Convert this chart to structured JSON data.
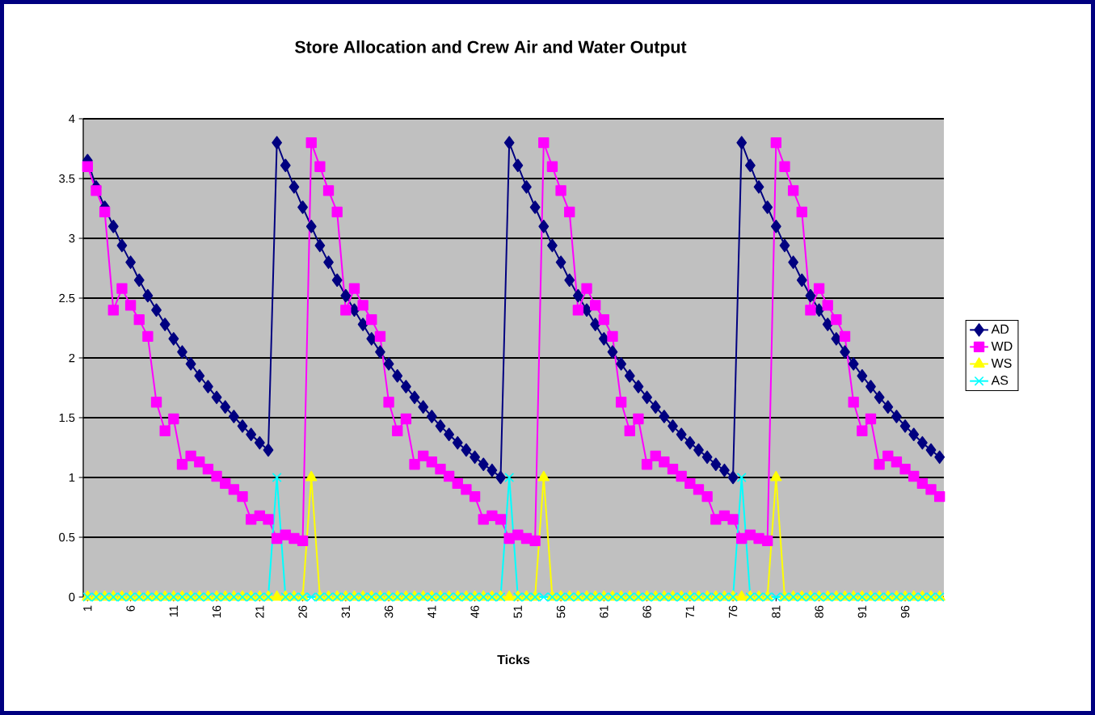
{
  "chart_data": {
    "type": "line",
    "title": "Store Allocation and Crew Air and Water Output",
    "xlabel": "Ticks",
    "categories": [
      "1",
      null,
      null,
      null,
      null,
      "6",
      null,
      null,
      null,
      null,
      "11",
      null,
      null,
      null,
      null,
      "16",
      null,
      null,
      null,
      null,
      "21",
      null,
      null,
      null,
      null,
      "26",
      null,
      null,
      null,
      null,
      "31",
      null,
      null,
      null,
      null,
      "36",
      null,
      null,
      null,
      null,
      "41",
      null,
      null,
      null,
      null,
      "46",
      null,
      null,
      null,
      null,
      "51",
      null,
      null,
      null,
      null,
      "56",
      null,
      null,
      null,
      null,
      "61",
      null,
      null,
      null,
      null,
      "66",
      null,
      null,
      null,
      null,
      "71",
      null,
      null,
      null,
      null,
      "76",
      null,
      null,
      null,
      null,
      "81",
      null,
      null,
      null,
      null,
      "86",
      null,
      null,
      null,
      null,
      "91",
      null,
      null,
      null,
      null,
      "96",
      null,
      null,
      null,
      null
    ],
    "ylim": [
      0,
      4
    ],
    "yticks": [
      0,
      0.5,
      1,
      1.5,
      2,
      2.5,
      3,
      3.5,
      4
    ],
    "grid": "y",
    "legend": "right",
    "line_style": "solid",
    "series": [
      {
        "name": "AD",
        "color": "#000080",
        "marker": "diamond",
        "values": [
          3.65,
          3.43,
          3.26,
          3.1,
          2.94,
          2.8,
          2.65,
          2.52,
          2.4,
          2.28,
          2.16,
          2.05,
          1.95,
          1.85,
          1.76,
          1.67,
          1.59,
          1.51,
          1.43,
          1.36,
          1.29,
          1.23,
          3.8,
          3.61,
          3.43,
          3.26,
          3.1,
          2.94,
          2.8,
          2.65,
          2.52,
          2.4,
          2.28,
          2.16,
          2.05,
          1.95,
          1.85,
          1.76,
          1.67,
          1.59,
          1.51,
          1.43,
          1.36,
          1.29,
          1.23,
          1.17,
          1.11,
          1.06,
          1.0,
          3.8,
          3.61,
          3.43,
          3.26,
          3.1,
          2.94,
          2.8,
          2.65,
          2.52,
          2.4,
          2.28,
          2.16,
          2.05,
          1.95,
          1.85,
          1.76,
          1.67,
          1.59,
          1.51,
          1.43,
          1.36,
          1.29,
          1.23,
          1.17,
          1.11,
          1.06,
          1.0,
          3.8,
          3.61,
          3.43,
          3.26,
          3.1,
          2.94,
          2.8,
          2.65,
          2.52,
          2.4,
          2.28,
          2.16,
          2.05,
          1.95,
          1.85,
          1.76,
          1.67,
          1.59,
          1.51,
          1.43,
          1.36,
          1.29,
          1.23,
          1.17
        ]
      },
      {
        "name": "WD",
        "color": "#ff00ff",
        "marker": "square",
        "values": [
          3.6,
          3.4,
          3.22,
          2.4,
          2.58,
          2.44,
          2.32,
          2.18,
          1.63,
          1.39,
          1.49,
          1.11,
          1.18,
          1.13,
          1.07,
          1.01,
          0.95,
          0.9,
          0.84,
          0.65,
          0.68,
          0.65,
          0.49,
          0.52,
          0.49,
          0.47,
          3.8,
          3.6,
          3.4,
          3.22,
          2.4,
          2.58,
          2.44,
          2.32,
          2.18,
          1.63,
          1.39,
          1.49,
          1.11,
          1.18,
          1.13,
          1.07,
          1.01,
          0.95,
          0.9,
          0.84,
          0.65,
          0.68,
          0.65,
          0.49,
          0.52,
          0.49,
          0.47,
          3.8,
          3.6,
          3.4,
          3.22,
          2.4,
          2.58,
          2.44,
          2.32,
          2.18,
          1.63,
          1.39,
          1.49,
          1.11,
          1.18,
          1.13,
          1.07,
          1.01,
          0.95,
          0.9,
          0.84,
          0.65,
          0.68,
          0.65,
          0.49,
          0.52,
          0.49,
          0.47,
          3.8,
          3.6,
          3.4,
          3.22,
          2.4,
          2.58,
          2.44,
          2.32,
          2.18,
          1.63,
          1.39,
          1.49,
          1.11,
          1.18,
          1.13,
          1.07,
          1.01,
          0.95,
          0.9,
          0.84
        ]
      },
      {
        "name": "WS",
        "color": "#ffff00",
        "marker": "triangle",
        "values": [
          0,
          0,
          0,
          0,
          0,
          0,
          0,
          0,
          0,
          0,
          0,
          0,
          0,
          0,
          0,
          0,
          0,
          0,
          0,
          0,
          0,
          0,
          0,
          0,
          0,
          0,
          1,
          0,
          0,
          0,
          0,
          0,
          0,
          0,
          0,
          0,
          0,
          0,
          0,
          0,
          0,
          0,
          0,
          0,
          0,
          0,
          0,
          0,
          0,
          0,
          0,
          0,
          0,
          1,
          0,
          0,
          0,
          0,
          0,
          0,
          0,
          0,
          0,
          0,
          0,
          0,
          0,
          0,
          0,
          0,
          0,
          0,
          0,
          0,
          0,
          0,
          0,
          0,
          0,
          0,
          1,
          0,
          0,
          0,
          0,
          0,
          0,
          0,
          0,
          0,
          0,
          0,
          0,
          0,
          0,
          0,
          0,
          0,
          0,
          0
        ]
      },
      {
        "name": "AS",
        "color": "#00ffff",
        "marker": "cross",
        "values": [
          0,
          0,
          0,
          0,
          0,
          0,
          0,
          0,
          0,
          0,
          0,
          0,
          0,
          0,
          0,
          0,
          0,
          0,
          0,
          0,
          0,
          0,
          1,
          0,
          0,
          0,
          0,
          0,
          0,
          0,
          0,
          0,
          0,
          0,
          0,
          0,
          0,
          0,
          0,
          0,
          0,
          0,
          0,
          0,
          0,
          0,
          0,
          0,
          0,
          1,
          0,
          0,
          0,
          0,
          0,
          0,
          0,
          0,
          0,
          0,
          0,
          0,
          0,
          0,
          0,
          0,
          0,
          0,
          0,
          0,
          0,
          0,
          0,
          0,
          0,
          0,
          1,
          0,
          0,
          0,
          0,
          0,
          0,
          0,
          0,
          0,
          0,
          0,
          0,
          0,
          0,
          0,
          0,
          0,
          0,
          0,
          0,
          0,
          0,
          0
        ]
      }
    ]
  }
}
